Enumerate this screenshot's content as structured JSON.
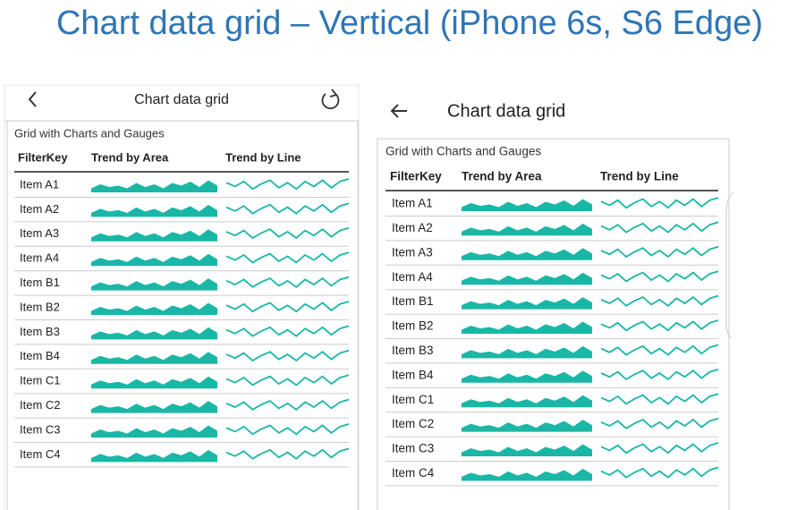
{
  "title": "Chart data grid – Vertical (iPhone 6s, S6 Edge)",
  "screens": [
    {
      "header": "Chart data grid",
      "subtitle": "Grid with Charts and Gauges",
      "columns": [
        "FilterKey",
        "Trend by Area",
        "Trend by Line"
      ],
      "rows": [
        "Item A1",
        "Item A2",
        "Item A3",
        "Item A4",
        "Item B1",
        "Item B2",
        "Item B3",
        "Item B4",
        "Item C1",
        "Item C2",
        "Item C3",
        "Item C4"
      ]
    },
    {
      "header": "Chart data grid",
      "subtitle": "Grid with Charts and Gauges",
      "columns": [
        "FilterKey",
        "Trend by Area",
        "Trend by Line"
      ],
      "rows": [
        "Item A1",
        "Item A2",
        "Item A3",
        "Item A4",
        "Item B1",
        "Item B2",
        "Item B3",
        "Item B4",
        "Item C1",
        "Item C2",
        "Item C3",
        "Item C4"
      ]
    }
  ],
  "trend_area": [
    3,
    6,
    4,
    5,
    3,
    7,
    4,
    6,
    3,
    7,
    5,
    8,
    4,
    9,
    5
  ],
  "trend_line": [
    7,
    4,
    8,
    2,
    6,
    9,
    3,
    7,
    2,
    8,
    4,
    9,
    3,
    8,
    10
  ],
  "trend_lim": [
    0,
    10
  ]
}
